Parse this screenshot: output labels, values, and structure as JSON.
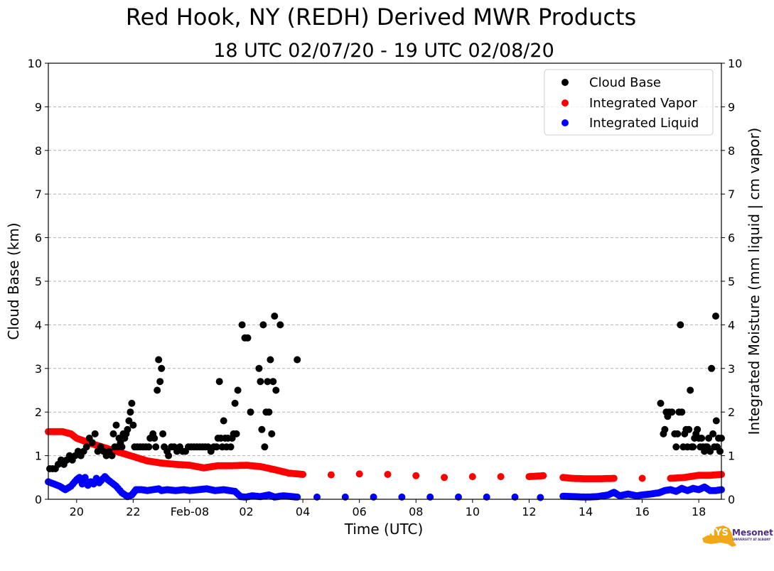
{
  "chart_data": {
    "type": "scatter",
    "title": "Red Hook, NY (REDH) Derived MWR Products",
    "subtitle": "18 UTC 02/07/20 - 19 UTC 02/08/20",
    "xlabel": "Time (UTC)",
    "ylabel": "Cloud Base (km)",
    "ylabel_right": "Integrated Moisture (mm liquid | cm vapor)",
    "xlim": [
      19.0,
      42.8
    ],
    "ylim": [
      0,
      10
    ],
    "ylim_right": [
      0,
      10
    ],
    "grid": "horizontal dashed",
    "legend_position": "top-right",
    "x_ticks": [
      {
        "x": 20,
        "label": "20"
      },
      {
        "x": 22,
        "label": "22"
      },
      {
        "x": 24,
        "label": "Feb-08"
      },
      {
        "x": 26,
        "label": "02"
      },
      {
        "x": 28,
        "label": "04"
      },
      {
        "x": 30,
        "label": "06"
      },
      {
        "x": 32,
        "label": "08"
      },
      {
        "x": 34,
        "label": "10"
      },
      {
        "x": 36,
        "label": "12"
      },
      {
        "x": 38,
        "label": "14"
      },
      {
        "x": 40,
        "label": "16"
      },
      {
        "x": 42,
        "label": "18"
      }
    ],
    "y_ticks": [
      "0",
      "1",
      "2",
      "3",
      "4",
      "5",
      "6",
      "7",
      "8",
      "9",
      "10"
    ],
    "series": [
      {
        "name": "Cloud Base",
        "color": "#000000",
        "points": [
          [
            19.05,
            0.7
          ],
          [
            19.15,
            0.7
          ],
          [
            19.25,
            0.7
          ],
          [
            19.35,
            0.8
          ],
          [
            19.45,
            0.9
          ],
          [
            19.55,
            0.8
          ],
          [
            19.65,
            0.9
          ],
          [
            19.75,
            1.0
          ],
          [
            19.85,
            0.9
          ],
          [
            19.95,
            1.0
          ],
          [
            20.05,
            1.1
          ],
          [
            20.15,
            1.0
          ],
          [
            20.25,
            1.1
          ],
          [
            20.35,
            1.2
          ],
          [
            20.45,
            1.4
          ],
          [
            20.55,
            1.3
          ],
          [
            20.65,
            1.5
          ],
          [
            20.75,
            1.1
          ],
          [
            20.85,
            1.2
          ],
          [
            20.95,
            1.1
          ],
          [
            21.05,
            1.0
          ],
          [
            21.15,
            1.1
          ],
          [
            21.25,
            1.0
          ],
          [
            21.3,
            1.5
          ],
          [
            21.35,
            1.2
          ],
          [
            21.4,
            1.7
          ],
          [
            21.45,
            1.2
          ],
          [
            21.5,
            1.4
          ],
          [
            21.55,
            1.3
          ],
          [
            21.6,
            1.2
          ],
          [
            21.65,
            1.5
          ],
          [
            21.7,
            1.4
          ],
          [
            21.75,
            1.5
          ],
          [
            21.8,
            1.6
          ],
          [
            21.85,
            1.8
          ],
          [
            21.9,
            2.0
          ],
          [
            21.95,
            2.2
          ],
          [
            22.0,
            1.7
          ],
          [
            22.05,
            1.2
          ],
          [
            22.15,
            1.2
          ],
          [
            22.25,
            1.2
          ],
          [
            22.35,
            1.2
          ],
          [
            22.45,
            1.2
          ],
          [
            22.55,
            1.2
          ],
          [
            22.6,
            1.4
          ],
          [
            22.7,
            1.5
          ],
          [
            22.75,
            1.4
          ],
          [
            22.8,
            1.2
          ],
          [
            22.85,
            2.5
          ],
          [
            22.9,
            3.2
          ],
          [
            22.95,
            2.7
          ],
          [
            23.0,
            3.0
          ],
          [
            23.05,
            1.5
          ],
          [
            23.1,
            1.2
          ],
          [
            23.2,
            1.1
          ],
          [
            23.25,
            1.0
          ],
          [
            23.35,
            1.2
          ],
          [
            23.45,
            1.2
          ],
          [
            23.55,
            1.1
          ],
          [
            23.65,
            1.2
          ],
          [
            23.75,
            1.1
          ],
          [
            23.85,
            1.1
          ],
          [
            23.95,
            1.2
          ],
          [
            24.05,
            1.2
          ],
          [
            24.15,
            1.2
          ],
          [
            24.25,
            1.2
          ],
          [
            24.35,
            1.2
          ],
          [
            24.45,
            1.2
          ],
          [
            24.55,
            1.2
          ],
          [
            24.65,
            1.2
          ],
          [
            24.75,
            1.1
          ],
          [
            24.85,
            1.2
          ],
          [
            24.95,
            1.2
          ],
          [
            25.0,
            1.4
          ],
          [
            25.05,
            2.7
          ],
          [
            25.1,
            1.4
          ],
          [
            25.15,
            1.2
          ],
          [
            25.2,
            1.8
          ],
          [
            25.25,
            1.4
          ],
          [
            25.3,
            1.2
          ],
          [
            25.35,
            1.4
          ],
          [
            25.45,
            1.2
          ],
          [
            25.5,
            1.4
          ],
          [
            25.55,
            1.5
          ],
          [
            25.6,
            2.2
          ],
          [
            25.65,
            1.5
          ],
          [
            25.7,
            2.5
          ],
          [
            25.85,
            4.0
          ],
          [
            25.95,
            3.7
          ],
          [
            26.05,
            3.7
          ],
          [
            26.15,
            2.0
          ],
          [
            26.45,
            3.0
          ],
          [
            26.5,
            2.7
          ],
          [
            26.55,
            1.6
          ],
          [
            26.6,
            4.0
          ],
          [
            26.65,
            1.2
          ],
          [
            26.7,
            2.0
          ],
          [
            26.75,
            2.7
          ],
          [
            26.8,
            2.0
          ],
          [
            26.85,
            3.2
          ],
          [
            26.9,
            1.5
          ],
          [
            26.95,
            2.7
          ],
          [
            27.0,
            4.2
          ],
          [
            27.05,
            2.5
          ],
          [
            27.2,
            4.0
          ],
          [
            27.8,
            3.2
          ],
          [
            40.65,
            2.2
          ],
          [
            40.75,
            1.5
          ],
          [
            40.8,
            1.6
          ],
          [
            40.85,
            2.0
          ],
          [
            40.9,
            1.9
          ],
          [
            40.95,
            2.0
          ],
          [
            41.05,
            2.0
          ],
          [
            41.15,
            1.5
          ],
          [
            41.2,
            1.2
          ],
          [
            41.25,
            1.5
          ],
          [
            41.3,
            2.0
          ],
          [
            41.35,
            4.0
          ],
          [
            41.4,
            2.0
          ],
          [
            41.45,
            1.2
          ],
          [
            41.5,
            1.5
          ],
          [
            41.55,
            1.6
          ],
          [
            41.6,
            1.2
          ],
          [
            41.65,
            1.6
          ],
          [
            41.7,
            2.5
          ],
          [
            41.75,
            1.2
          ],
          [
            41.8,
            1.2
          ],
          [
            41.85,
            1.4
          ],
          [
            41.9,
            1.5
          ],
          [
            41.95,
            1.6
          ],
          [
            42.0,
            1.4
          ],
          [
            42.05,
            1.2
          ],
          [
            42.1,
            1.4
          ],
          [
            42.15,
            1.2
          ],
          [
            42.2,
            1.1
          ],
          [
            42.25,
            1.2
          ],
          [
            42.3,
            1.2
          ],
          [
            42.35,
            1.4
          ],
          [
            42.4,
            1.1
          ],
          [
            42.45,
            3.0
          ],
          [
            42.5,
            1.5
          ],
          [
            42.55,
            1.2
          ],
          [
            42.6,
            4.2
          ],
          [
            42.62,
            1.8
          ],
          [
            42.65,
            1.2
          ],
          [
            42.7,
            1.4
          ],
          [
            42.75,
            1.1
          ],
          [
            42.8,
            1.4
          ]
        ]
      },
      {
        "name": "Integrated Vapor",
        "color": "#ff0000",
        "points": [
          [
            19.0,
            1.55
          ],
          [
            19.5,
            1.55
          ],
          [
            19.8,
            1.5
          ],
          [
            20.0,
            1.4
          ],
          [
            20.5,
            1.28
          ],
          [
            21.0,
            1.18
          ],
          [
            21.5,
            1.08
          ],
          [
            22.0,
            0.98
          ],
          [
            22.5,
            0.88
          ],
          [
            23.0,
            0.83
          ],
          [
            23.5,
            0.8
          ],
          [
            24.0,
            0.78
          ],
          [
            24.5,
            0.72
          ],
          [
            25.0,
            0.77
          ],
          [
            25.5,
            0.77
          ],
          [
            26.0,
            0.78
          ],
          [
            26.5,
            0.75
          ],
          [
            27.0,
            0.68
          ],
          [
            27.5,
            0.6
          ],
          [
            28.0,
            0.57
          ],
          [
            29.0,
            0.56
          ],
          [
            30.0,
            0.58
          ],
          [
            31.0,
            0.57
          ],
          [
            32.0,
            0.54
          ],
          [
            33.0,
            0.5
          ],
          [
            34.0,
            0.52
          ],
          [
            35.0,
            0.52
          ],
          [
            36.0,
            0.52
          ],
          [
            36.5,
            0.54
          ],
          [
            37.2,
            0.5
          ],
          [
            37.5,
            0.48
          ],
          [
            38.0,
            0.47
          ],
          [
            38.5,
            0.47
          ],
          [
            39.0,
            0.48
          ],
          [
            40.0,
            0.48
          ],
          [
            41.0,
            0.48
          ],
          [
            41.5,
            0.5
          ],
          [
            42.0,
            0.55
          ],
          [
            42.4,
            0.55
          ],
          [
            42.8,
            0.57
          ]
        ]
      },
      {
        "name": "Integrated Liquid",
        "color": "#0000ff",
        "points": [
          [
            19.0,
            0.4
          ],
          [
            19.2,
            0.35
          ],
          [
            19.4,
            0.3
          ],
          [
            19.6,
            0.22
          ],
          [
            19.8,
            0.3
          ],
          [
            20.0,
            0.45
          ],
          [
            20.1,
            0.5
          ],
          [
            20.2,
            0.35
          ],
          [
            20.3,
            0.5
          ],
          [
            20.4,
            0.32
          ],
          [
            20.5,
            0.4
          ],
          [
            20.6,
            0.35
          ],
          [
            20.7,
            0.48
          ],
          [
            20.8,
            0.38
          ],
          [
            21.0,
            0.52
          ],
          [
            21.1,
            0.45
          ],
          [
            21.2,
            0.4
          ],
          [
            21.4,
            0.3
          ],
          [
            21.6,
            0.15
          ],
          [
            21.8,
            0.06
          ],
          [
            21.95,
            0.1
          ],
          [
            22.1,
            0.22
          ],
          [
            22.3,
            0.22
          ],
          [
            22.5,
            0.2
          ],
          [
            22.7,
            0.22
          ],
          [
            22.9,
            0.24
          ],
          [
            23.0,
            0.2
          ],
          [
            23.2,
            0.22
          ],
          [
            23.5,
            0.2
          ],
          [
            23.8,
            0.22
          ],
          [
            24.0,
            0.2
          ],
          [
            24.3,
            0.22
          ],
          [
            24.6,
            0.24
          ],
          [
            24.9,
            0.2
          ],
          [
            25.2,
            0.22
          ],
          [
            25.4,
            0.2
          ],
          [
            25.6,
            0.18
          ],
          [
            25.8,
            0.06
          ],
          [
            26.0,
            0.05
          ],
          [
            26.2,
            0.08
          ],
          [
            26.5,
            0.06
          ],
          [
            26.8,
            0.1
          ],
          [
            27.0,
            0.05
          ],
          [
            27.3,
            0.08
          ],
          [
            27.8,
            0.05
          ],
          [
            28.5,
            0.05
          ],
          [
            29.5,
            0.05
          ],
          [
            30.5,
            0.05
          ],
          [
            31.5,
            0.05
          ],
          [
            32.5,
            0.05
          ],
          [
            33.5,
            0.05
          ],
          [
            34.5,
            0.05
          ],
          [
            35.5,
            0.05
          ],
          [
            36.4,
            0.04
          ],
          [
            37.2,
            0.07
          ],
          [
            37.6,
            0.06
          ],
          [
            38.0,
            0.05
          ],
          [
            38.4,
            0.06
          ],
          [
            38.8,
            0.1
          ],
          [
            39.0,
            0.16
          ],
          [
            39.2,
            0.08
          ],
          [
            39.5,
            0.12
          ],
          [
            39.8,
            0.08
          ],
          [
            40.0,
            0.1
          ],
          [
            40.3,
            0.12
          ],
          [
            40.6,
            0.15
          ],
          [
            40.8,
            0.2
          ],
          [
            41.0,
            0.22
          ],
          [
            41.2,
            0.18
          ],
          [
            41.4,
            0.25
          ],
          [
            41.6,
            0.2
          ],
          [
            41.8,
            0.25
          ],
          [
            42.0,
            0.22
          ],
          [
            42.2,
            0.28
          ],
          [
            42.4,
            0.2
          ],
          [
            42.6,
            0.2
          ],
          [
            42.8,
            0.22
          ]
        ]
      }
    ]
  },
  "logo": {
    "text_main": "NYS",
    "text_side": "Mesonet",
    "text_small": "UNIVERSITY AT ALBANY"
  }
}
